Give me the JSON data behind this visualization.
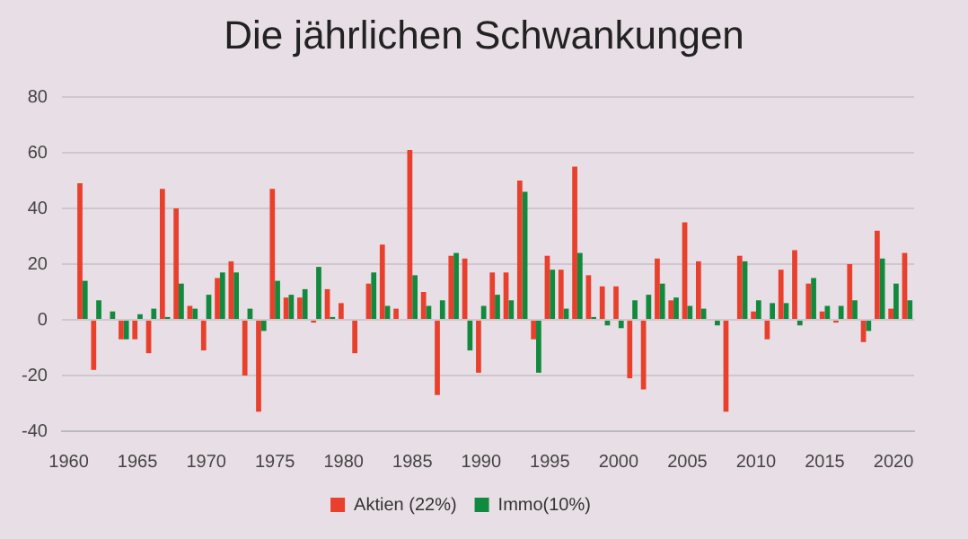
{
  "chart_data": {
    "type": "bar",
    "title": "Die jährlichen Schwankungen",
    "categories": [
      "1960",
      null,
      null,
      null,
      null,
      "1965",
      null,
      null,
      null,
      null,
      "1970",
      null,
      null,
      null,
      null,
      "1975",
      null,
      null,
      null,
      null,
      "1980",
      null,
      null,
      null,
      null,
      "1985",
      null,
      null,
      null,
      null,
      "1990",
      null,
      null,
      null,
      null,
      "1995",
      null,
      null,
      null,
      null,
      "2000",
      null,
      null,
      null,
      null,
      "2005",
      null,
      null,
      null,
      null,
      "2010",
      null,
      null,
      null,
      null,
      "2015",
      null,
      null,
      null,
      null,
      "2020",
      null
    ],
    "series": [
      {
        "name": "Aktien (22%)",
        "color": "#e8402c",
        "values": [
          null,
          49,
          -18,
          0,
          -7,
          -7,
          -12,
          47,
          40,
          5,
          -11,
          15,
          21,
          -20,
          -33,
          47,
          8,
          8,
          -1,
          11,
          6,
          -12,
          13,
          27,
          4,
          61,
          10,
          -27,
          23,
          22,
          -19,
          17,
          17,
          50,
          -7,
          23,
          18,
          55,
          16,
          12,
          12,
          -21,
          -25,
          22,
          7,
          35,
          21,
          0,
          -33,
          23,
          3,
          -7,
          18,
          25,
          13,
          3,
          -1,
          20,
          -8,
          32,
          4,
          24
        ]
      },
      {
        "name": "Immo(10%)",
        "color": "#108a3c",
        "values": [
          null,
          14,
          7,
          3,
          -7,
          2,
          4,
          1,
          13,
          4,
          9,
          17,
          17,
          4,
          -4,
          14,
          9,
          11,
          19,
          1,
          0,
          0,
          17,
          5,
          0,
          16,
          5,
          7,
          24,
          -11,
          5,
          9,
          7,
          46,
          -19,
          18,
          4,
          24,
          1,
          -2,
          -3,
          7,
          9,
          13,
          8,
          5,
          4,
          -2,
          0,
          21,
          7,
          6,
          6,
          -2,
          15,
          5,
          5,
          7,
          -4,
          22,
          13,
          7
        ]
      }
    ],
    "ylim": [
      -40,
      80
    ],
    "yticks": [
      -40,
      -20,
      0,
      20,
      40,
      60,
      80
    ],
    "grid": "y",
    "legend": "bottom"
  }
}
